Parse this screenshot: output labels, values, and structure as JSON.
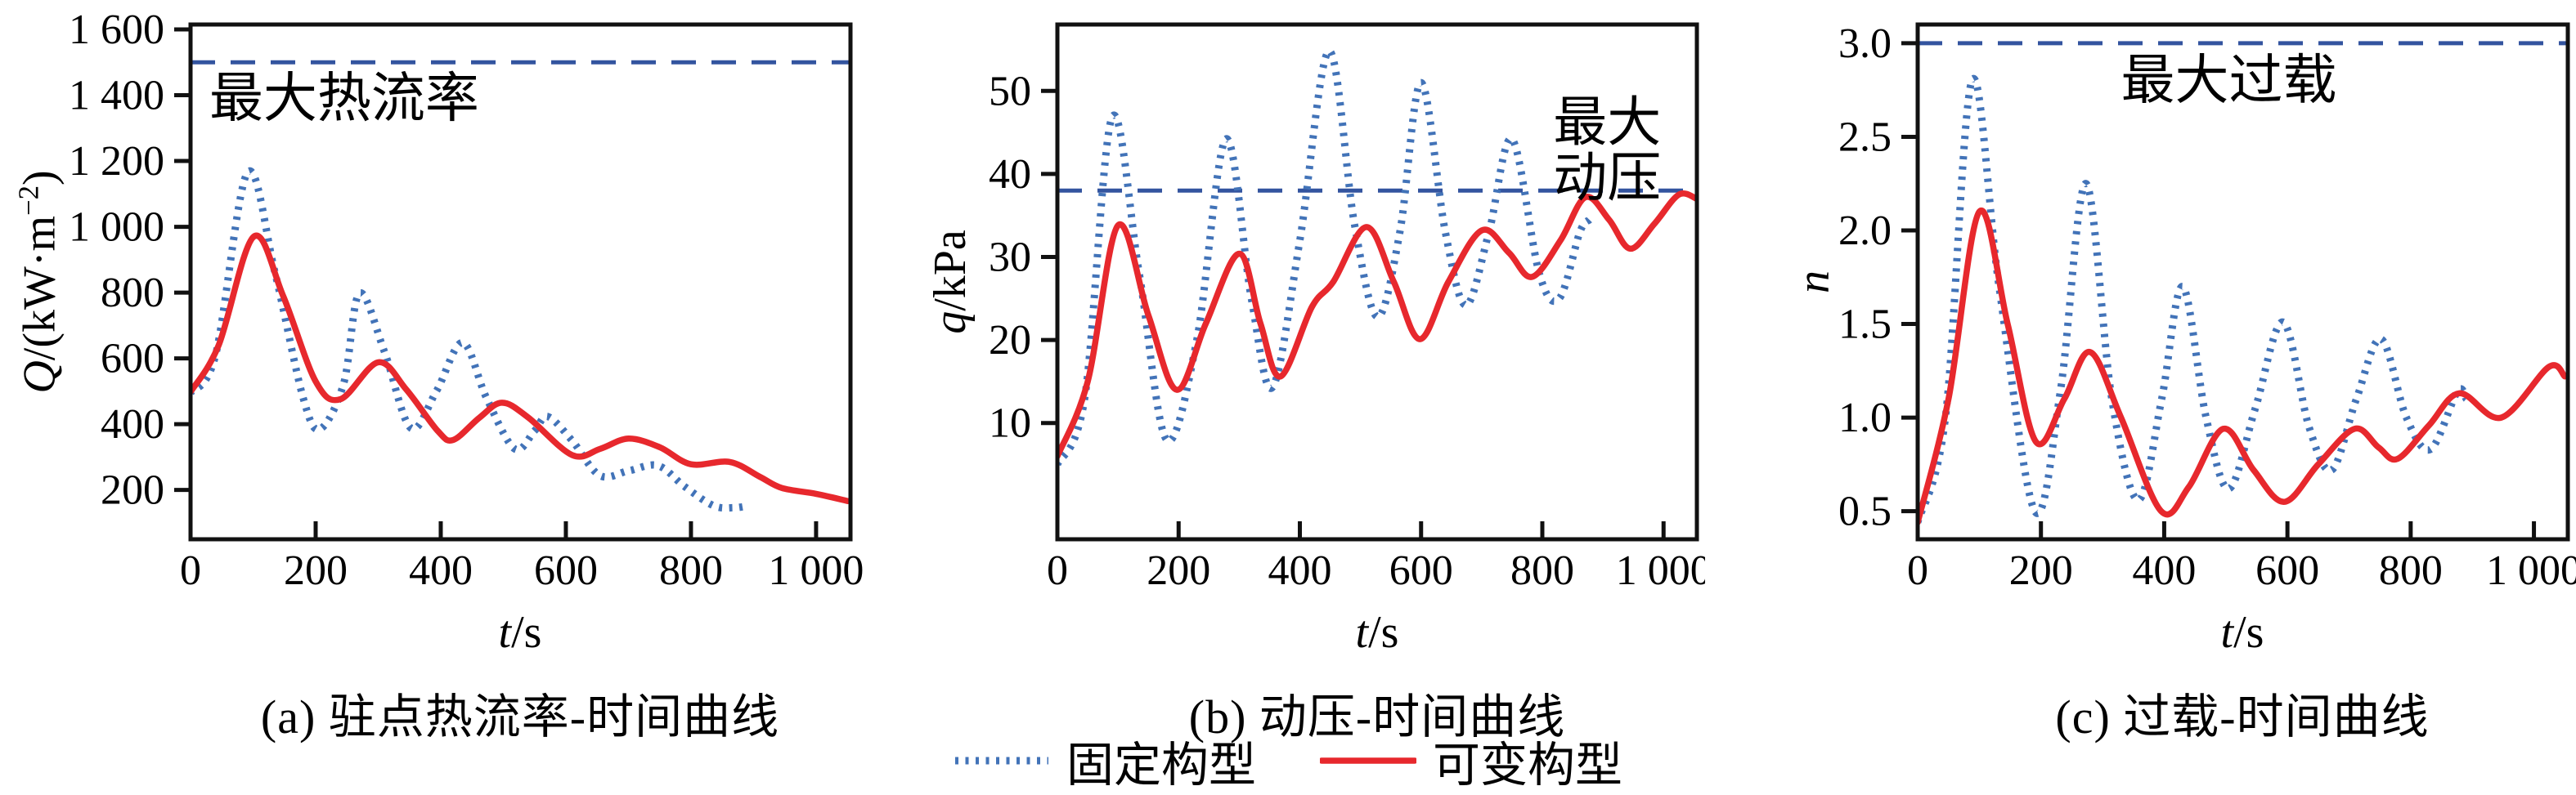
{
  "colors": {
    "fixed": "#4273b8",
    "variable": "#e7282d",
    "limit": "#33549f",
    "axis": "#111111",
    "text": "#000000"
  },
  "legend": {
    "items": [
      {
        "key": "fixed",
        "label": "固定构型",
        "style": "dotted"
      },
      {
        "key": "variable",
        "label": "可变构型",
        "style": "solid"
      }
    ]
  },
  "chart_data": [
    {
      "id": "a",
      "type": "line",
      "caption": "(a) 驻点热流率-时间曲线",
      "xlabel_var": "t",
      "xlabel_rest": "/s",
      "ylabel_var": "Q",
      "ylabel_pre": "/(kW·m",
      "ylabel_sup": "−2",
      "ylabel_post": ")",
      "xlim": [
        0,
        1055
      ],
      "ylim": [
        50,
        1615
      ],
      "grid": false,
      "xticks": {
        "values": [
          0,
          200,
          400,
          600,
          800,
          1000
        ],
        "labels": [
          "0",
          "200",
          "400",
          "600",
          "800",
          "1 000"
        ]
      },
      "yticks": {
        "values": [
          200,
          400,
          600,
          800,
          1000,
          1200,
          1400,
          1600
        ],
        "labels": [
          "200",
          "400",
          "600",
          "800",
          "1 000",
          "1 200",
          "1 400",
          "1 600"
        ]
      },
      "limit_line": {
        "value": 1500
      },
      "annotations": [
        {
          "lines": [
            "最大热流率"
          ],
          "t": 30,
          "values": [
            1390
          ],
          "anchor": "start"
        }
      ],
      "series": [
        {
          "name": "固定构型",
          "key": "fixed",
          "style": "dotted",
          "points": [
            [
              0,
              495
            ],
            [
              40,
              610
            ],
            [
              91,
              1165
            ],
            [
              135,
              860
            ],
            [
              180,
              480
            ],
            [
              207,
              385
            ],
            [
              245,
              525
            ],
            [
              270,
              798
            ],
            [
              310,
              620
            ],
            [
              352,
              388
            ],
            [
              393,
              500
            ],
            [
              435,
              648
            ],
            [
              473,
              480
            ],
            [
              518,
              325
            ],
            [
              550,
              380
            ],
            [
              571,
              423
            ],
            [
              610,
              350
            ],
            [
              654,
              244
            ],
            [
              700,
              258
            ],
            [
              747,
              274
            ],
            [
              790,
              210
            ],
            [
              836,
              152
            ],
            [
              868,
              146
            ],
            [
              892,
              152
            ]
          ]
        },
        {
          "name": "可变构型",
          "key": "variable",
          "style": "solid",
          "points": [
            [
              0,
              498
            ],
            [
              45,
              640
            ],
            [
              101,
              970
            ],
            [
              148,
              790
            ],
            [
              200,
              530
            ],
            [
              240,
              476
            ],
            [
              300,
              588
            ],
            [
              345,
              505
            ],
            [
              395,
              380
            ],
            [
              420,
              352
            ],
            [
              462,
              420
            ],
            [
              498,
              465
            ],
            [
              540,
              420
            ],
            [
              610,
              306
            ],
            [
              655,
              325
            ],
            [
              700,
              356
            ],
            [
              750,
              330
            ],
            [
              800,
              278
            ],
            [
              862,
              285
            ],
            [
              910,
              240
            ],
            [
              945,
              206
            ],
            [
              1000,
              188
            ],
            [
              1051,
              166
            ]
          ]
        }
      ]
    },
    {
      "id": "b",
      "type": "line",
      "caption": "(b) 动压-时间曲线",
      "xlabel_var": "t",
      "xlabel_rest": "/s",
      "ylabel_var": "q",
      "ylabel_pre": "/kPa",
      "ylabel_sup": "",
      "ylabel_post": "",
      "xlim": [
        0,
        1055
      ],
      "ylim": [
        -4,
        58
      ],
      "grid": false,
      "xticks": {
        "values": [
          0,
          200,
          400,
          600,
          800,
          1000
        ],
        "labels": [
          "0",
          "200",
          "400",
          "600",
          "800",
          "1 000"
        ]
      },
      "yticks": {
        "values": [
          10,
          20,
          30,
          40,
          50
        ],
        "labels": [
          "10",
          "20",
          "30",
          "40",
          "50"
        ]
      },
      "limit_line": {
        "value": 38
      },
      "annotations": [
        {
          "lines": [
            "最大",
            "动压"
          ],
          "t": 907,
          "values": [
            46.2,
            39.5
          ],
          "anchor": "middle"
        }
      ],
      "series": [
        {
          "name": "固定构型",
          "key": "fixed",
          "style": "dotted",
          "points": [
            [
              0,
              5
            ],
            [
              45,
              13
            ],
            [
              90,
              46.8
            ],
            [
              135,
              28
            ],
            [
              180,
              8
            ],
            [
              230,
              20
            ],
            [
              278,
              44.2
            ],
            [
              320,
              25
            ],
            [
              355,
              14.3
            ],
            [
              400,
              32
            ],
            [
              448,
              54.8
            ],
            [
              490,
              34
            ],
            [
              528,
              22.8
            ],
            [
              565,
              33
            ],
            [
              600,
              51
            ],
            [
              640,
              33
            ],
            [
              674,
              24.2
            ],
            [
              712,
              33
            ],
            [
              750,
              44.2
            ],
            [
              795,
              28
            ],
            [
              828,
              25
            ],
            [
              862,
              33
            ],
            [
              878,
              34.5
            ]
          ]
        },
        {
          "name": "可变构型",
          "key": "variable",
          "style": "solid",
          "points": [
            [
              0,
              6
            ],
            [
              50,
              15
            ],
            [
              100,
              33.8
            ],
            [
              150,
              23
            ],
            [
              197,
              14
            ],
            [
              245,
              22
            ],
            [
              300,
              30.4
            ],
            [
              335,
              22
            ],
            [
              368,
              15.6
            ],
            [
              420,
              24
            ],
            [
              455,
              27
            ],
            [
              510,
              33.6
            ],
            [
              555,
              27
            ],
            [
              598,
              20.1
            ],
            [
              645,
              27
            ],
            [
              700,
              33.2
            ],
            [
              745,
              30.5
            ],
            [
              783,
              27.6
            ],
            [
              830,
              32
            ],
            [
              871,
              37.2
            ],
            [
              910,
              34.5
            ],
            [
              945,
              31
            ],
            [
              985,
              34
            ],
            [
              1025,
              37.5
            ],
            [
              1055,
              37
            ]
          ]
        }
      ]
    },
    {
      "id": "c",
      "type": "line",
      "caption": "(c) 过载-时间曲线",
      "xlabel_var": "t",
      "xlabel_rest": "/s",
      "ylabel_var": "n",
      "ylabel_pre": "",
      "ylabel_sup": "",
      "ylabel_post": "",
      "xlim": [
        0,
        1055
      ],
      "ylim": [
        0.35,
        3.1
      ],
      "grid": false,
      "xticks": {
        "values": [
          0,
          200,
          400,
          600,
          800,
          1000
        ],
        "labels": [
          "0",
          "200",
          "400",
          "600",
          "800",
          "1 000"
        ]
      },
      "yticks": {
        "values": [
          0.5,
          1.0,
          1.5,
          2.0,
          2.5,
          3.0
        ],
        "labels": [
          "0.5",
          "1.0",
          "1.5",
          "2.0",
          "2.5",
          "3.0"
        ]
      },
      "limit_line": {
        "value": 3.0
      },
      "annotations": [
        {
          "lines": [
            "最大过载"
          ],
          "t": 505,
          "values": [
            2.8
          ],
          "anchor": "middle"
        }
      ],
      "series": [
        {
          "name": "固定构型",
          "key": "fixed",
          "style": "dotted",
          "points": [
            [
              0,
              0.44
            ],
            [
              45,
              1.0
            ],
            [
              88,
              2.8
            ],
            [
              132,
              1.7
            ],
            [
              190,
              0.5
            ],
            [
              232,
              1.15
            ],
            [
              273,
              2.25
            ],
            [
              315,
              1.1
            ],
            [
              358,
              0.56
            ],
            [
              396,
              1.1
            ],
            [
              430,
              1.7
            ],
            [
              468,
              1.0
            ],
            [
              505,
              0.62
            ],
            [
              548,
              1.05
            ],
            [
              593,
              1.51
            ],
            [
              635,
              0.95
            ],
            [
              672,
              0.72
            ],
            [
              712,
              1.1
            ],
            [
              752,
              1.42
            ],
            [
              793,
              1.0
            ],
            [
              832,
              0.83
            ],
            [
              876,
              1.14
            ],
            [
              890,
              1.1
            ]
          ]
        },
        {
          "name": "可变构型",
          "key": "variable",
          "style": "solid",
          "points": [
            [
              0,
              0.44
            ],
            [
              50,
              1.1
            ],
            [
              100,
              2.1
            ],
            [
              146,
              1.5
            ],
            [
              192,
              0.87
            ],
            [
              238,
              1.1
            ],
            [
              280,
              1.35
            ],
            [
              330,
              1.0
            ],
            [
              395,
              0.5
            ],
            [
              440,
              0.63
            ],
            [
              496,
              0.94
            ],
            [
              545,
              0.72
            ],
            [
              595,
              0.55
            ],
            [
              650,
              0.75
            ],
            [
              709,
              0.94
            ],
            [
              748,
              0.84
            ],
            [
              779,
              0.78
            ],
            [
              830,
              0.96
            ],
            [
              879,
              1.13
            ],
            [
              947,
              1.0
            ],
            [
              1024,
              1.27
            ],
            [
              1050,
              1.22
            ]
          ]
        }
      ]
    }
  ]
}
